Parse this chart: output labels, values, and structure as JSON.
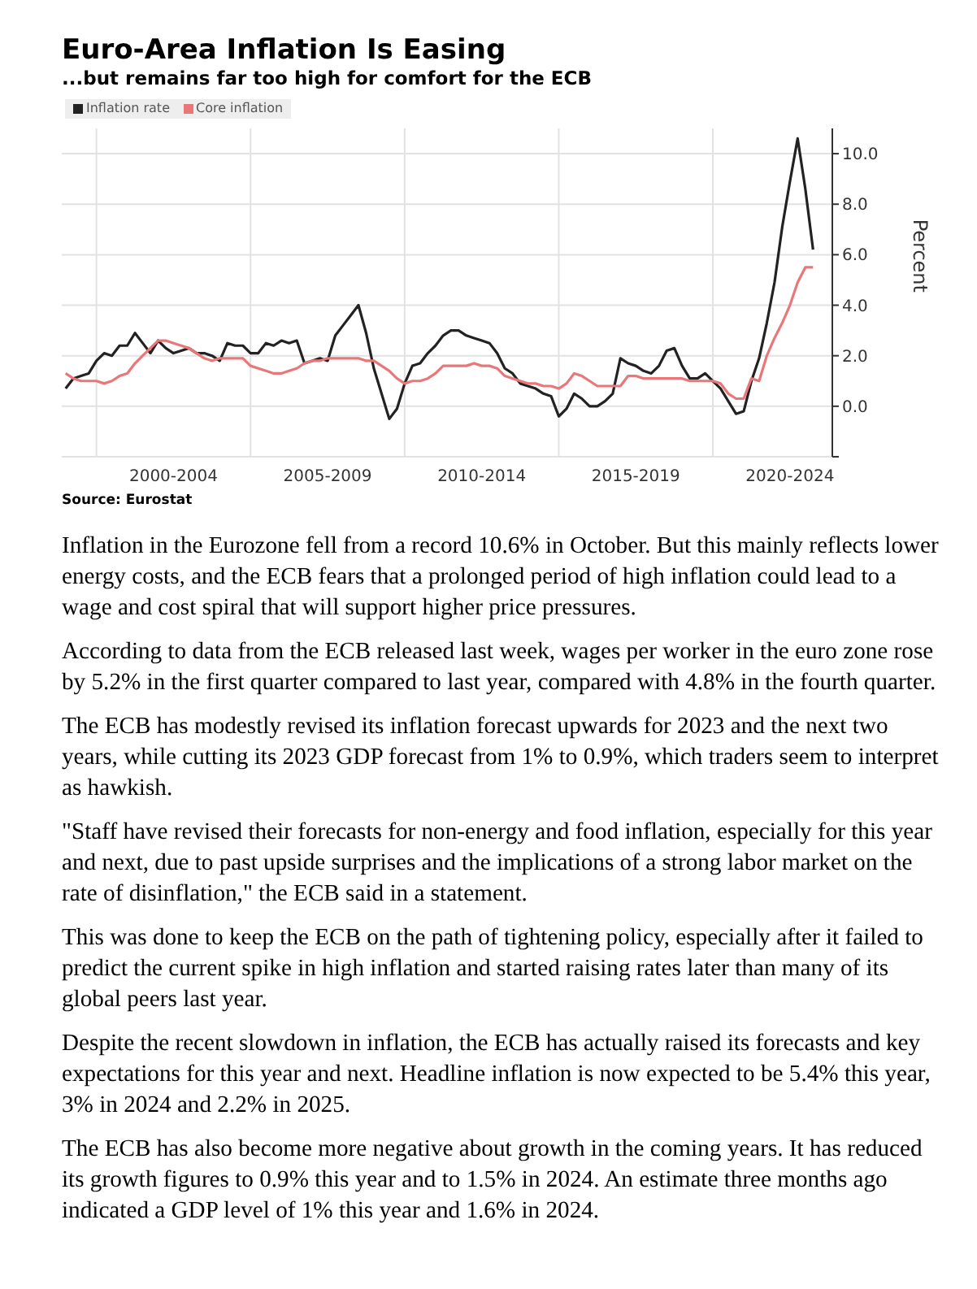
{
  "chart_data": {
    "type": "line",
    "title": "Euro-Area Inflation Is Easing",
    "subtitle": "...but remains far too high for comfort for the ECB",
    "ylabel": "Percent",
    "categories": [
      null,
      null,
      null,
      null,
      null,
      null,
      null,
      null,
      null,
      null,
      null,
      null,
      null,
      null,
      "2000-2004",
      null,
      null,
      null,
      null,
      null,
      null,
      null,
      null,
      null,
      null,
      null,
      null,
      null,
      null,
      null,
      null,
      null,
      null,
      null,
      "2005-2009",
      null,
      null,
      null,
      null,
      null,
      null,
      null,
      null,
      null,
      null,
      null,
      null,
      null,
      null,
      null,
      null,
      null,
      null,
      null,
      "2010-2014",
      null,
      null,
      null,
      null,
      null,
      null,
      null,
      null,
      null,
      null,
      null,
      null,
      null,
      null,
      null,
      null,
      null,
      null,
      null,
      "2015-2019",
      null,
      null,
      null,
      null,
      null,
      null,
      null,
      null,
      null,
      null,
      null,
      null,
      null,
      null,
      null,
      null,
      null,
      null,
      null,
      "2020-2024",
      null,
      null,
      null
    ],
    "ylim": [
      -2,
      11
    ],
    "yticks": [
      {
        "value": -2,
        "label": null
      },
      {
        "value": 0,
        "label": "0.0"
      },
      {
        "value": 2,
        "label": "2.0"
      },
      {
        "value": 4,
        "label": "4.0"
      },
      {
        "value": 6,
        "label": "6.0"
      },
      {
        "value": 8,
        "label": "8.0"
      },
      {
        "value": 10,
        "label": "10.0"
      }
    ],
    "grid": true,
    "legend": "top left",
    "marker": "none",
    "line_style": "solid",
    "series": [
      {
        "name": "Inflation rate",
        "color": "#222222",
        "values": [
          0.7,
          1.1,
          1.2,
          1.3,
          1.8,
          2.1,
          2.0,
          2.4,
          2.4,
          2.9,
          2.5,
          2.1,
          2.6,
          2.3,
          2.1,
          2.2,
          2.3,
          2.1,
          2.1,
          2.0,
          1.8,
          2.5,
          2.4,
          2.4,
          2.1,
          2.1,
          2.5,
          2.4,
          2.6,
          2.5,
          2.6,
          1.7,
          1.8,
          1.9,
          1.8,
          2.8,
          3.2,
          3.6,
          4.0,
          2.9,
          1.5,
          0.5,
          -0.5,
          -0.1,
          0.9,
          1.6,
          1.7,
          2.1,
          2.4,
          2.8,
          3.0,
          3.0,
          2.8,
          2.7,
          2.6,
          2.5,
          2.1,
          1.5,
          1.3,
          0.9,
          0.8,
          0.7,
          0.5,
          0.4,
          -0.4,
          -0.1,
          0.5,
          0.3,
          0.0,
          0.0,
          0.2,
          0.5,
          1.9,
          1.7,
          1.6,
          1.4,
          1.3,
          1.6,
          2.2,
          2.3,
          1.6,
          1.1,
          1.1,
          1.3,
          1.0,
          0.7,
          0.2,
          -0.3,
          -0.2,
          1.0,
          1.9,
          3.3,
          4.9,
          7.1,
          8.9,
          10.6,
          8.6,
          6.2
        ]
      },
      {
        "name": "Core inflation",
        "color": "#e8777a",
        "values": [
          1.3,
          1.1,
          1.0,
          1.0,
          1.0,
          0.9,
          1.0,
          1.2,
          1.3,
          1.7,
          2.0,
          2.3,
          2.6,
          2.6,
          2.5,
          2.4,
          2.3,
          2.1,
          1.9,
          1.8,
          1.9,
          1.9,
          1.9,
          1.9,
          1.6,
          1.5,
          1.4,
          1.3,
          1.3,
          1.4,
          1.5,
          1.7,
          1.8,
          1.8,
          1.9,
          1.9,
          1.9,
          1.9,
          1.9,
          1.8,
          1.8,
          1.6,
          1.4,
          1.1,
          0.9,
          1.0,
          1.0,
          1.1,
          1.3,
          1.6,
          1.6,
          1.6,
          1.6,
          1.7,
          1.6,
          1.6,
          1.5,
          1.2,
          1.1,
          1.0,
          0.9,
          0.9,
          0.8,
          0.8,
          0.7,
          0.9,
          1.3,
          1.2,
          1.0,
          0.8,
          0.8,
          0.8,
          0.8,
          1.2,
          1.2,
          1.1,
          1.1,
          1.1,
          1.1,
          1.1,
          1.1,
          1.0,
          1.0,
          1.0,
          1.0,
          0.9,
          0.5,
          0.3,
          0.3,
          1.1,
          1.0,
          2.0,
          2.7,
          3.3,
          4.0,
          4.9,
          5.5,
          5.5
        ]
      }
    ],
    "annotations": [
      "Source: Eurostat",
      "Inflation in the Eurozone fell from a record 10.6% in October. But this mainly reflects lower energy costs, and the ECB fears that a prolonged period of high inflation could lead to a wage and cost spiral that will support higher price pressures.",
      "According to data from the ECB released last week, wages per worker in the euro zone rose by 5.2% in the first quarter compared to last year, compared with 4.8% in the fourth quarter.",
      "The ECB has modestly revised its inflation forecast upwards for 2023 and the next two years, while cutting its 2023 GDP forecast from 1% to 0.9%, which traders seem to interpret as hawkish.",
      "\"Staff have revised their forecasts for non-energy and food inflation, especially for this year and next, due to past upside surprises and the implications of a strong labor market on the rate of disinflation,\" the ECB said in a statement.",
      "This was done to keep the ECB on the path of tightening policy, especially after it failed to predict the current spike in high inflation and started raising rates later than many of its global peers last year.",
      "Despite the recent slowdown in inflation, the ECB has actually raised its forecasts and key expectations for this year and next. Headline inflation is now expected to be 5.4% this year, 3% in 2024 and 2.2% in 2025.",
      "The ECB has also become more negative about growth in the coming years. It has reduced its growth figures to 0.9% this year and to 1.5% in 2024. An estimate three months ago indicated a GDP level of 1% this year and 1.6% in 2024."
    ]
  }
}
